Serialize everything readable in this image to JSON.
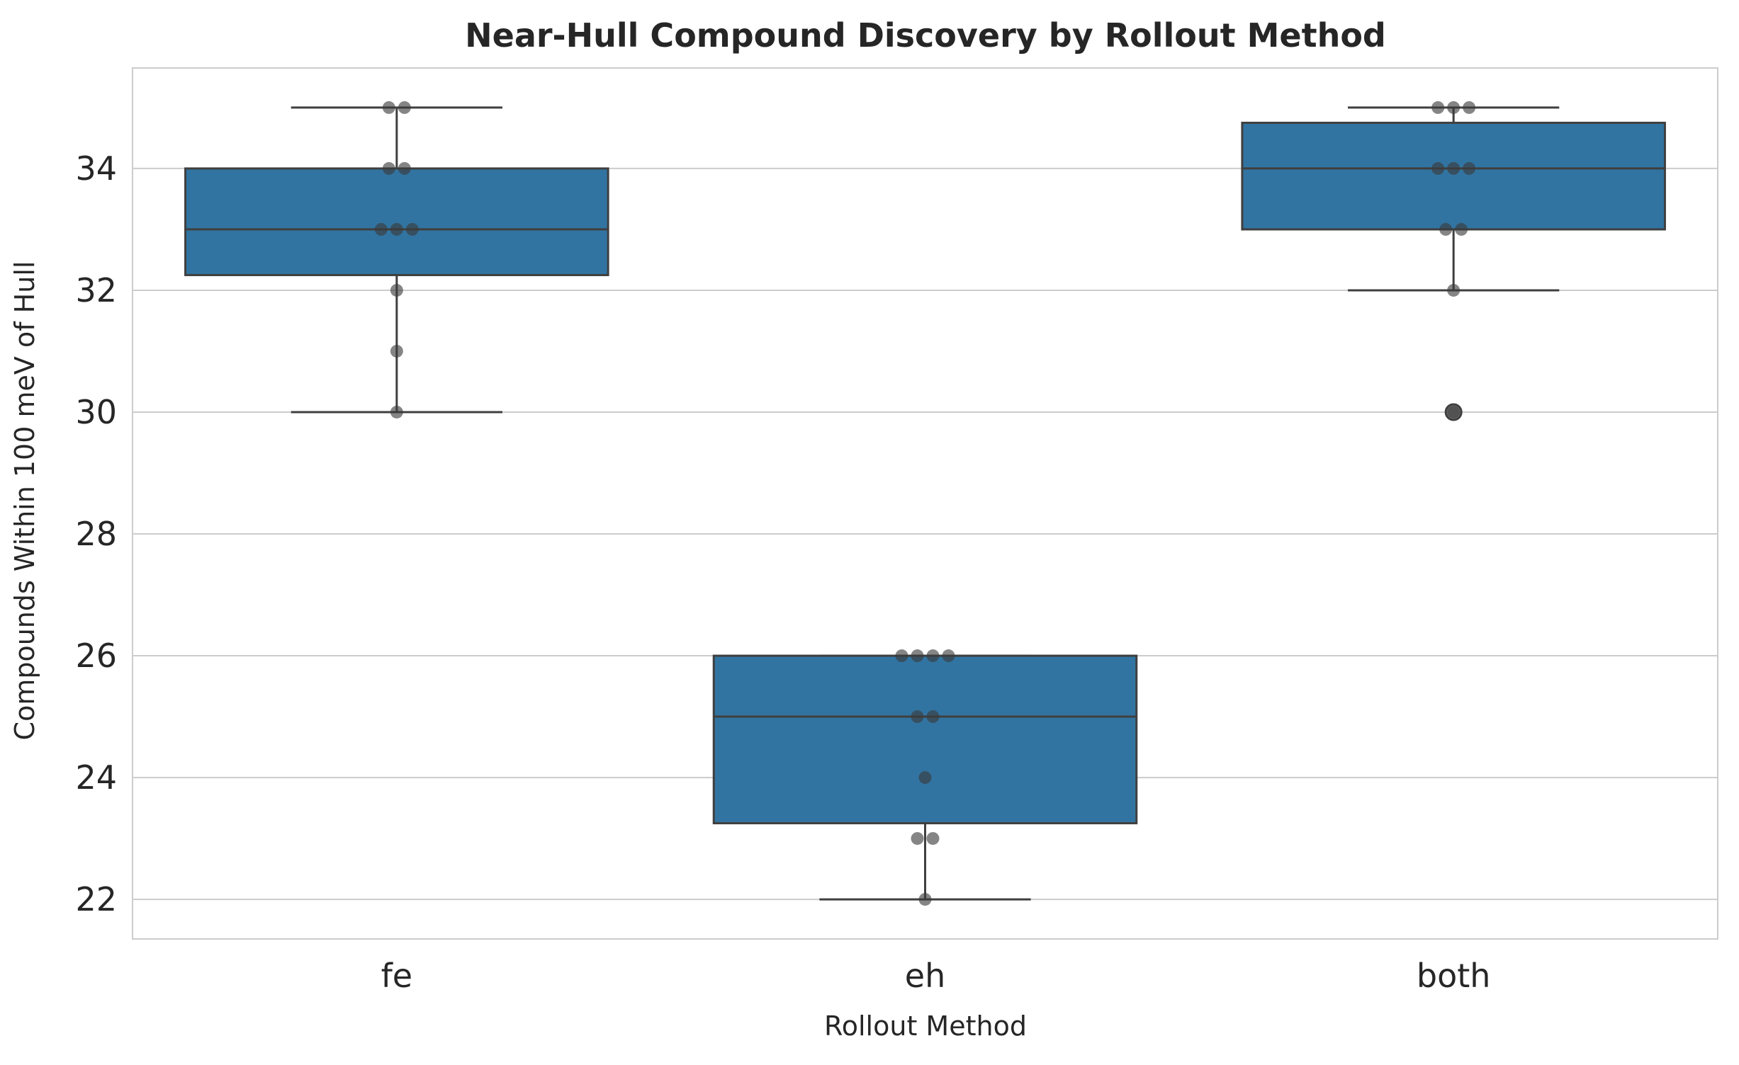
{
  "chart_data": {
    "type": "box",
    "title": "Near-Hull Compound Discovery by Rollout Method",
    "xlabel": "Rollout Method",
    "ylabel": "Compounds Within 100 meV of Hull",
    "categories": [
      "fe",
      "eh",
      "both"
    ],
    "ylim": [
      21.35,
      35.65
    ],
    "yticks": [
      22,
      24,
      26,
      28,
      30,
      32,
      34
    ],
    "grid": true,
    "box_color": "#3274a1",
    "box_edge_color": "#3f3f3f",
    "point_color": "#3a3a3a",
    "boxes": [
      {
        "category": "fe",
        "whisker_low": 30,
        "q1": 32.25,
        "median": 33,
        "q3": 34,
        "whisker_high": 35,
        "outliers": []
      },
      {
        "category": "eh",
        "whisker_low": 22,
        "q1": 23.25,
        "median": 25,
        "q3": 26,
        "whisker_high": 26,
        "outliers": []
      },
      {
        "category": "both",
        "whisker_low": 32,
        "q1": 33,
        "median": 34,
        "q3": 34.75,
        "whisker_high": 35,
        "outliers": [
          30
        ]
      }
    ],
    "points": [
      {
        "category": "fe",
        "values": [
          35,
          35,
          34,
          34,
          33,
          33,
          33,
          32,
          31,
          30
        ]
      },
      {
        "category": "eh",
        "values": [
          26,
          26,
          26,
          26,
          25,
          25,
          24,
          23,
          23,
          22
        ]
      },
      {
        "category": "both",
        "values": [
          35,
          35,
          35,
          34,
          34,
          34,
          33,
          33,
          32,
          30
        ]
      }
    ]
  }
}
